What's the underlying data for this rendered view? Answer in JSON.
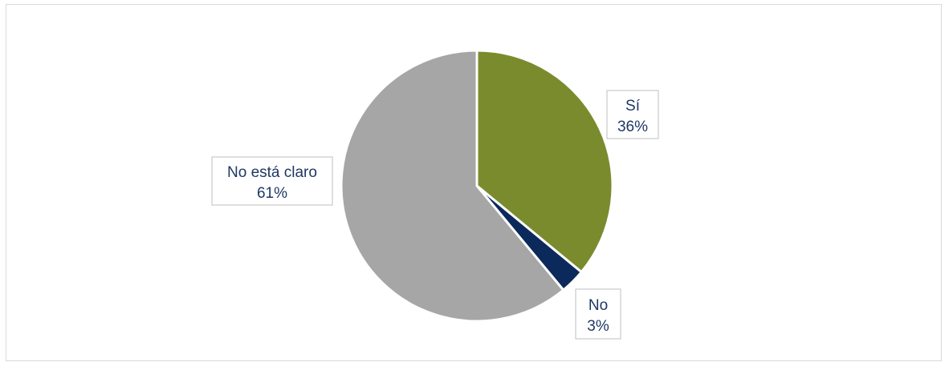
{
  "chart_data": {
    "type": "pie",
    "categories": [
      "Sí",
      "No",
      "No está claro"
    ],
    "values": [
      36,
      3,
      61
    ],
    "value_labels": [
      "36%",
      "3%",
      "61%"
    ],
    "colors": [
      "#7a8b2e",
      "#0b2a5b",
      "#a6a6a6"
    ],
    "title": "",
    "legend": "none"
  }
}
